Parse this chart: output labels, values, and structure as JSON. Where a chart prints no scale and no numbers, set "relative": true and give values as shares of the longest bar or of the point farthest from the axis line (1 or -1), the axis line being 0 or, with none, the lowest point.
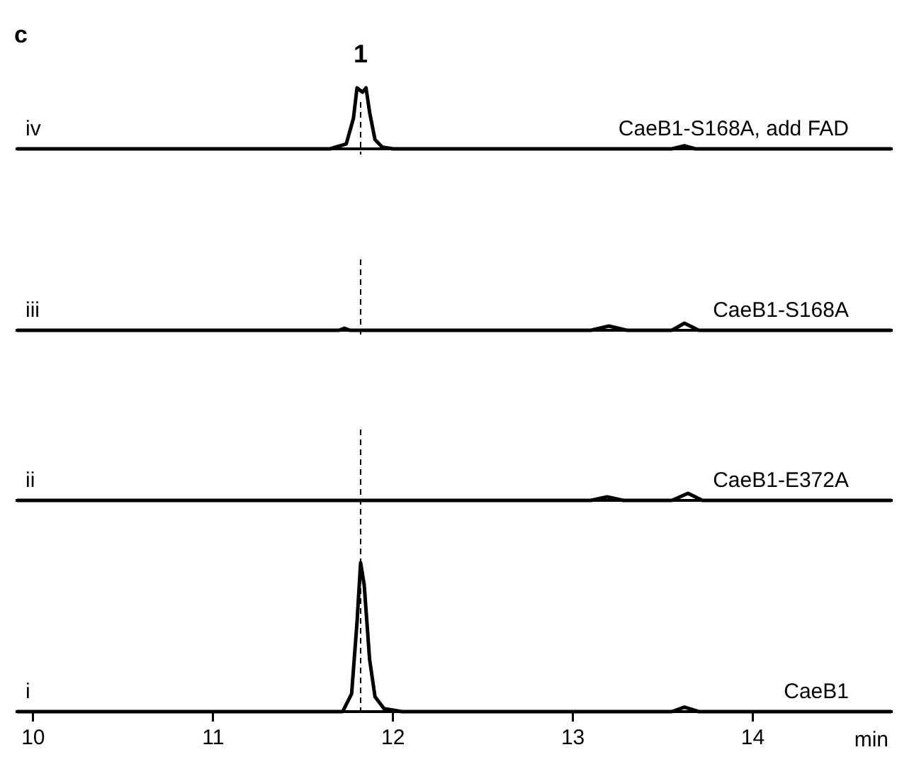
{
  "chart_data": [
    {
      "type": "line",
      "relative": true,
      "title": "c",
      "tick_labels": false,
      "xlim": [
        9.91,
        14.77
      ],
      "xticks": [
        10,
        11,
        12,
        13,
        14
      ],
      "annotations": [
        "iv",
        {
          "text": "1",
          "x": 11.82,
          "y": 1
        }
      ],
      "ref_lines": [
        {
          "axis": "x",
          "value": 11.82,
          "line_style": "dashed"
        }
      ],
      "series": [
        {
          "name": "CaeB1-S168A, add FAD",
          "color": "#000000",
          "x": [
            9.91,
            11.65,
            11.74,
            11.78,
            11.8,
            11.83,
            11.85,
            11.87,
            11.9,
            11.94,
            12.0,
            13.55,
            13.62,
            13.68,
            14.77
          ],
          "values": [
            0,
            0,
            0.08,
            0.5,
            1,
            0.93,
            1,
            0.6,
            0.15,
            0.03,
            0,
            0,
            0.05,
            0,
            0
          ]
        }
      ]
    },
    {
      "type": "line",
      "relative": true,
      "tick_labels": false,
      "xlim": [
        9.91,
        14.77
      ],
      "xticks": [
        10,
        11,
        12,
        13,
        14
      ],
      "annotations": [
        "iii"
      ],
      "ref_lines": [
        {
          "axis": "x",
          "value": 11.82,
          "line_style": "dashed"
        }
      ],
      "series": [
        {
          "name": "CaeB1-S168A",
          "color": "#000000",
          "x": [
            9.91,
            11.7,
            11.73,
            11.76,
            13.1,
            13.2,
            13.3,
            13.55,
            13.62,
            13.7,
            14.77
          ],
          "values": [
            0,
            0,
            0.3,
            0,
            0,
            0.6,
            0,
            0,
            1,
            0,
            0
          ]
        }
      ]
    },
    {
      "type": "line",
      "relative": true,
      "tick_labels": false,
      "xlim": [
        9.91,
        14.77
      ],
      "xticks": [
        10,
        11,
        12,
        13,
        14
      ],
      "annotations": [
        "ii"
      ],
      "ref_lines": [
        {
          "axis": "x",
          "value": 11.82,
          "line_style": "dashed"
        }
      ],
      "series": [
        {
          "name": "CaeB1-E372A",
          "color": "#000000",
          "x": [
            9.91,
            13.1,
            13.19,
            13.28,
            13.55,
            13.64,
            13.72,
            14.77
          ],
          "values": [
            0,
            0,
            0.5,
            0,
            0,
            1,
            0,
            0
          ]
        }
      ]
    },
    {
      "type": "line",
      "relative": true,
      "xlabel": "min",
      "xlim": [
        9.91,
        14.77
      ],
      "xticks": [
        10,
        11,
        12,
        13,
        14
      ],
      "annotations": [
        "i"
      ],
      "ref_lines": [
        {
          "axis": "x",
          "value": 11.82,
          "line_style": "dashed"
        }
      ],
      "series": [
        {
          "name": "CaeB1",
          "color": "#000000",
          "x": [
            9.91,
            11.72,
            11.77,
            11.8,
            11.82,
            11.84,
            11.87,
            11.9,
            11.95,
            12.05,
            13.55,
            13.62,
            13.7,
            14.77
          ],
          "values": [
            0,
            0,
            0.12,
            0.6,
            1,
            0.85,
            0.35,
            0.1,
            0.02,
            0,
            0,
            0.03,
            0,
            0
          ]
        }
      ]
    }
  ]
}
